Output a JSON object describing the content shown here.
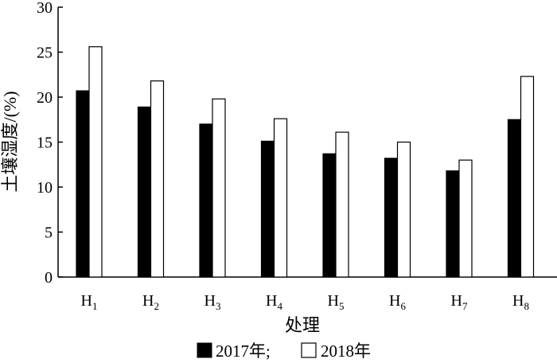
{
  "chart_data": {
    "type": "bar",
    "title": "",
    "xlabel": "处理",
    "ylabel": "土壤湿度/(%)",
    "categories": [
      {
        "base": "H",
        "sub": "1"
      },
      {
        "base": "H",
        "sub": "2"
      },
      {
        "base": "H",
        "sub": "3"
      },
      {
        "base": "H",
        "sub": "4"
      },
      {
        "base": "H",
        "sub": "5"
      },
      {
        "base": "H",
        "sub": "6"
      },
      {
        "base": "H",
        "sub": "7"
      },
      {
        "base": "H",
        "sub": "8"
      }
    ],
    "series": [
      {
        "name": "2017年",
        "legend_label": "2017年;",
        "color": "#000000",
        "values": [
          20.7,
          18.9,
          17.0,
          15.1,
          13.7,
          13.2,
          11.8,
          17.5
        ]
      },
      {
        "name": "2018年",
        "legend_label": "2018年",
        "color": "#ffffff",
        "values": [
          25.6,
          21.8,
          19.8,
          17.6,
          16.1,
          15.0,
          13.0,
          22.3
        ]
      }
    ],
    "ylim": [
      0,
      30
    ],
    "yticks": [
      0,
      5,
      10,
      15,
      20,
      25,
      30
    ],
    "grid": false,
    "legend_position": "bottom-center"
  }
}
